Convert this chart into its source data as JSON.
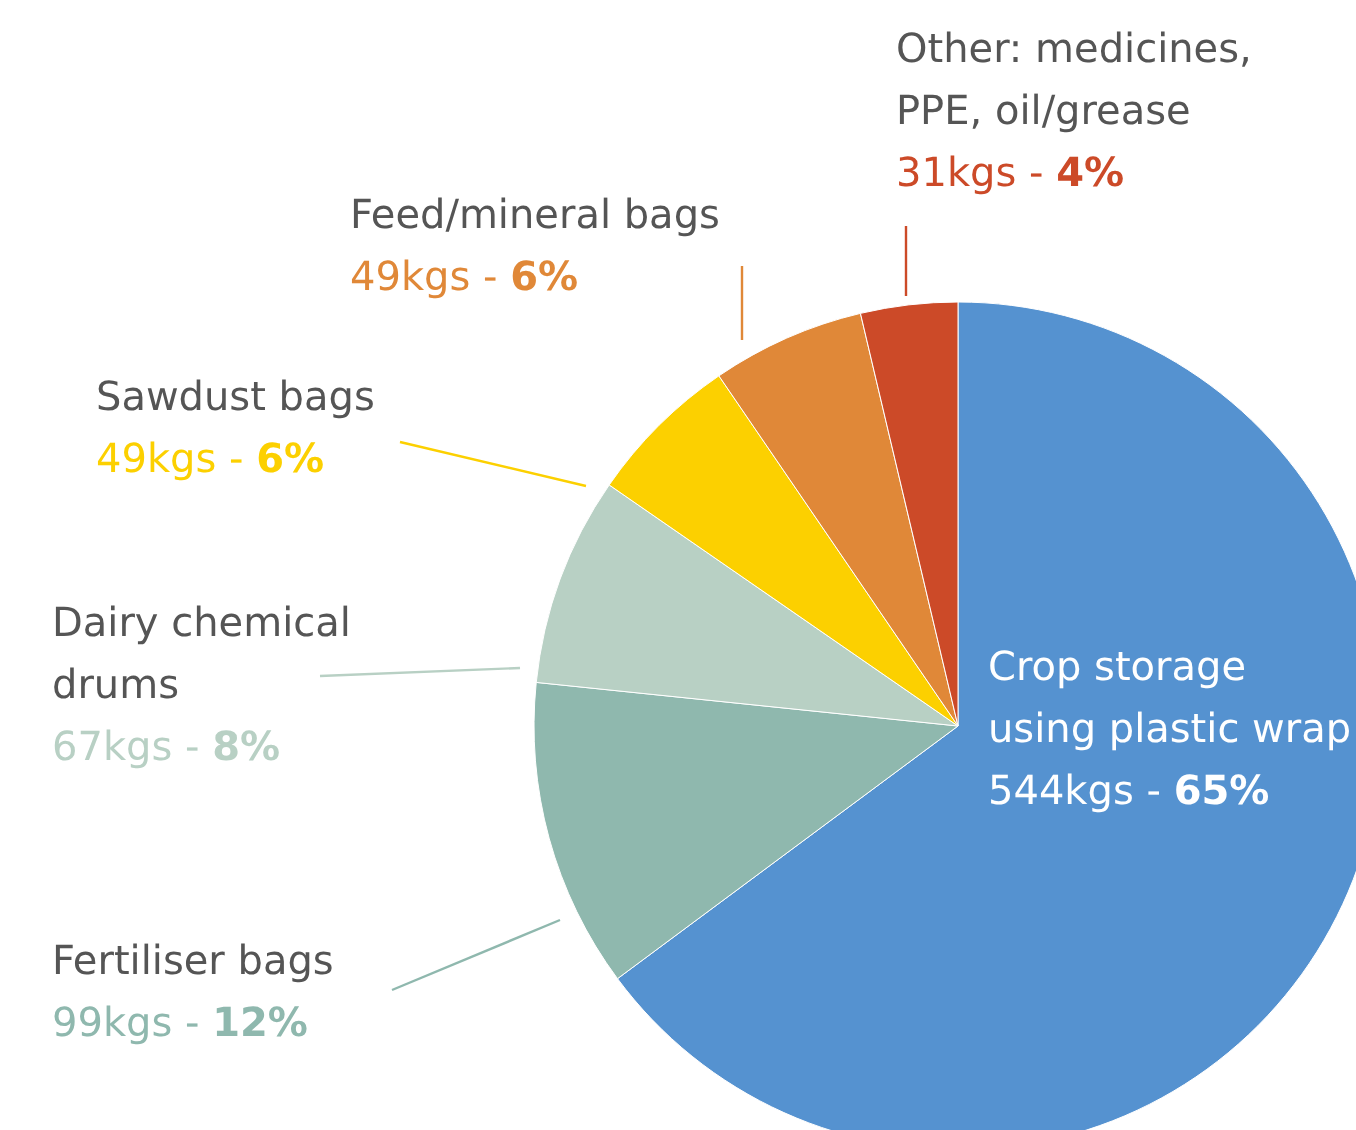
{
  "chart_data": {
    "type": "pie",
    "categories": [
      "Crop storage using plastic wrap",
      "Fertiliser bags",
      "Dairy chemical drums",
      "Sawdust bags",
      "Feed/mineral bags",
      "Other: medicines, PPE, oil/grease"
    ],
    "values": [
      544,
      99,
      67,
      49,
      49,
      31
    ],
    "colors": [
      "#5592d0",
      "#8fb8ae",
      "#b8d0c4",
      "#fcd000",
      "#e08838",
      "#cc4a28"
    ],
    "value_labels": [
      "544kgs - 65%",
      "99kgs - 12%",
      "67kgs - 8%",
      "49kgs - 6%",
      "49kgs - 6%",
      "31kgs - 4%"
    ]
  }
}
